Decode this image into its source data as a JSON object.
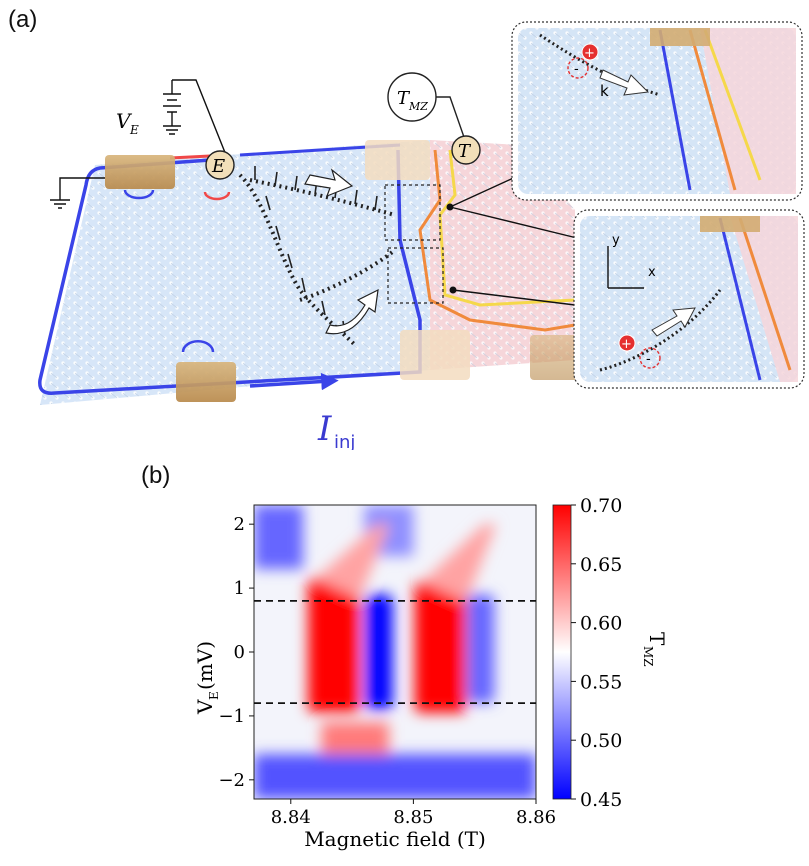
{
  "panel_a": {
    "label": "(a)",
    "voltage_label": "V",
    "voltage_sub": "E",
    "emitter_symbol": "E",
    "detector_symbol": "T",
    "meter_label": "T",
    "meter_sub": "MZ",
    "current_label": "I",
    "current_sub": "inj",
    "inset_top": {
      "plus": "+",
      "minus": "-",
      "k_label": "k"
    },
    "inset_bottom": {
      "axis_y": "y",
      "axis_x": "x",
      "plus": "+",
      "minus": "-"
    },
    "colors": {
      "edge_blue": "#3a44e8",
      "edge_red": "#f04848",
      "edge_orange": "#f08a3c",
      "edge_yellow": "#f5d84a",
      "gate": "#c9a163",
      "sample_blue": "#d7e6f8",
      "sample_pink": "#f6d6da",
      "current_label": "#3a3ad0"
    },
    "icons": [
      "ground-icon",
      "battery-icon",
      "meter-icon",
      "arrow-icon"
    ]
  },
  "panel_b": {
    "label": "(b)",
    "chart_data": {
      "type": "heatmap",
      "xlabel": "Magnetic field (T)",
      "ylabel": "V",
      "ylabel_sub": "E",
      "ylabel_unit": " (mV)",
      "xlim": [
        8.837,
        8.86
      ],
      "ylim": [
        -2.3,
        2.3
      ],
      "xticks": [
        8.84,
        8.85,
        8.86
      ],
      "xtick_labels": [
        "8.84",
        "8.85",
        "8.86"
      ],
      "yticks": [
        2,
        1,
        0,
        -1,
        -2
      ],
      "ytick_labels": [
        "2",
        "1",
        "0",
        "−1",
        "−2"
      ],
      "colorbar": {
        "label": "T",
        "label_sub": "MZ",
        "range": [
          0.45,
          0.7
        ],
        "ticks": [
          0.7,
          0.65,
          0.6,
          0.55,
          0.5,
          0.45
        ],
        "tick_labels": [
          "0.70",
          "0.65",
          "0.60",
          "0.55",
          "0.50",
          "0.45"
        ],
        "colormap": "bwr"
      },
      "dashed_lines_y": [
        0.8,
        -0.8
      ],
      "features": [
        {
          "kind": "max_stripe",
          "b_center": 8.8435,
          "v_range": [
            -0.95,
            1.15
          ],
          "value": 0.7
        },
        {
          "kind": "min_stripe",
          "b_center": 8.8472,
          "v_range": [
            -0.9,
            0.9
          ],
          "value": 0.45
        },
        {
          "kind": "max_stripe",
          "b_center": 8.8522,
          "v_range": [
            -0.95,
            1.1
          ],
          "value": 0.7
        },
        {
          "kind": "min_stripe",
          "b_center": 8.8555,
          "v_range": [
            -0.8,
            0.9
          ],
          "value": 0.5
        }
      ]
    }
  }
}
